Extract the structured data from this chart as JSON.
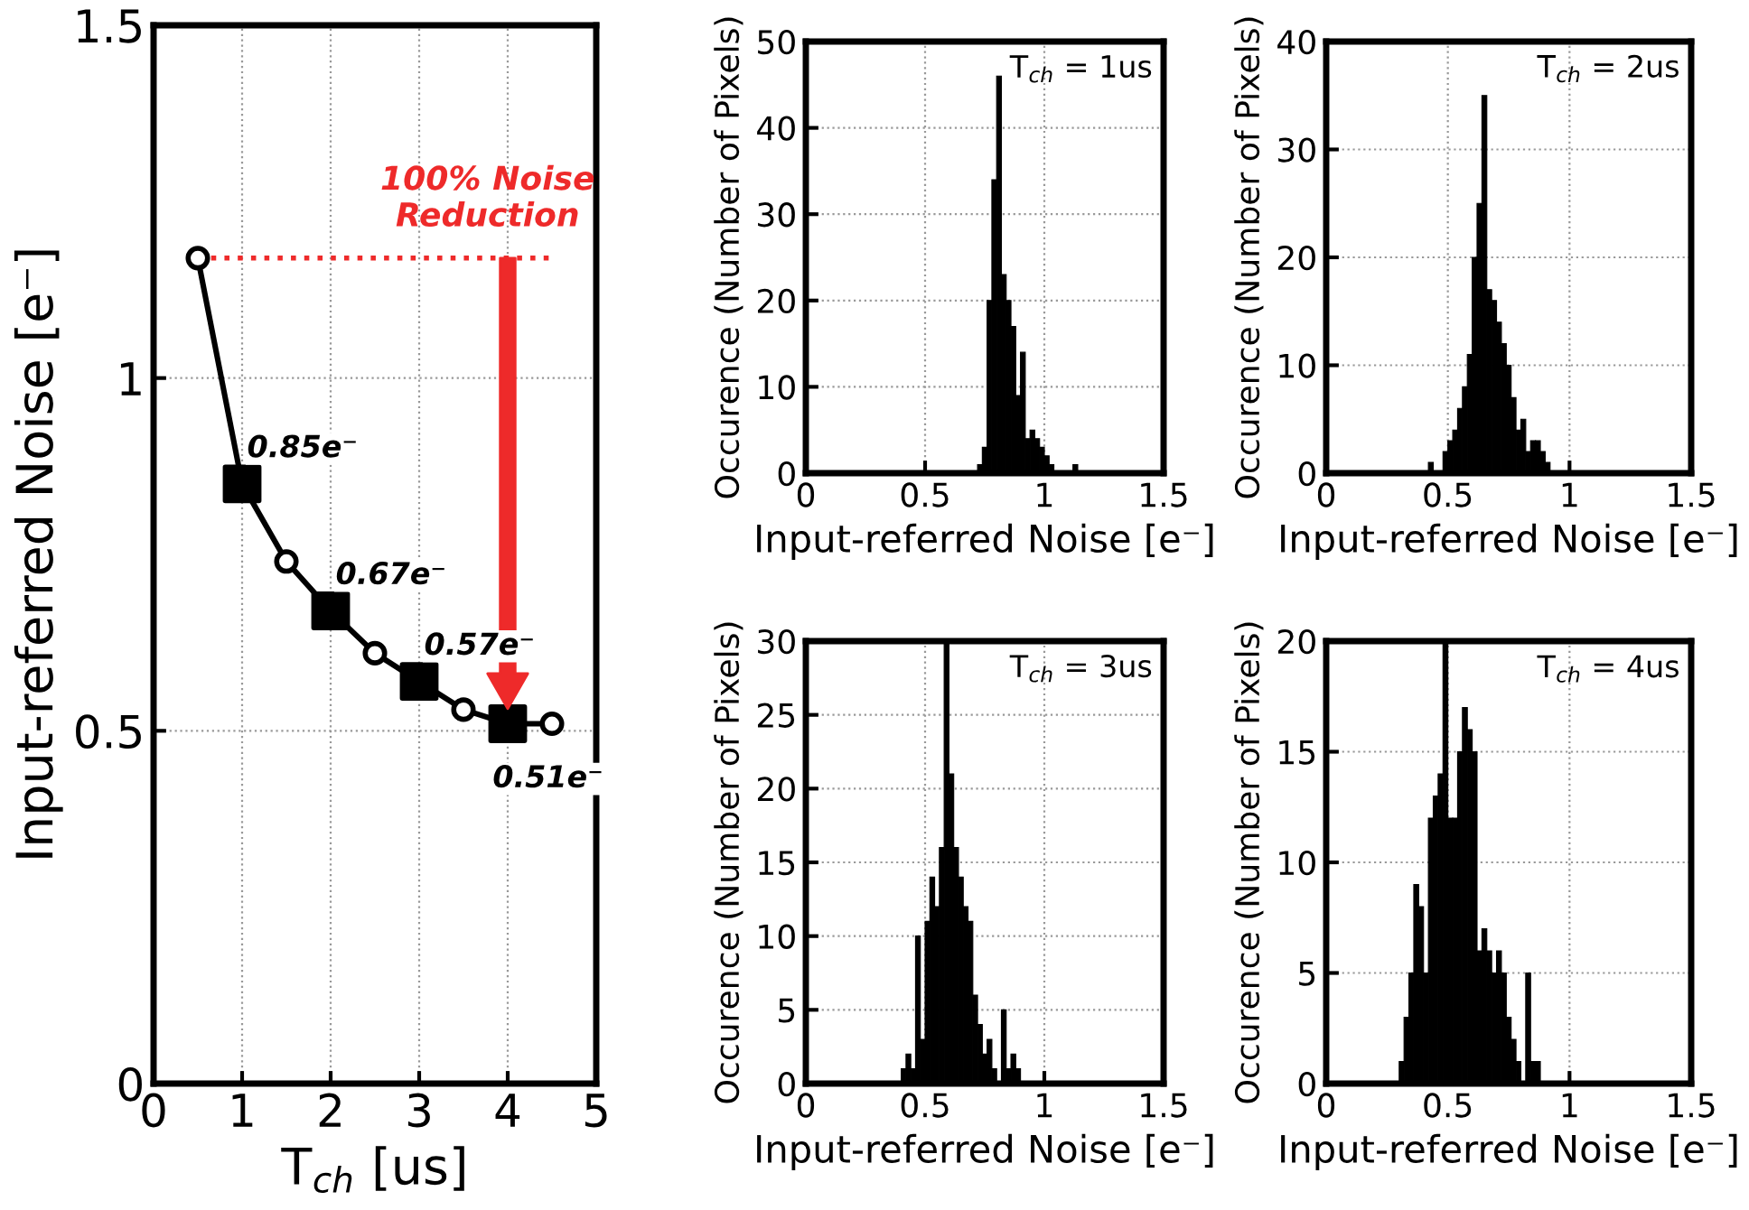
{
  "chart_data": [
    {
      "type": "line",
      "xlabel": "T$_{ch}$ [us]",
      "ylabel": "Input-referred Noise [e⁻]",
      "xlim": [
        0,
        5
      ],
      "xticks": [
        0,
        1,
        2,
        3,
        4,
        5
      ],
      "ylim": [
        0,
        1.5
      ],
      "yticks": [
        0,
        0.5,
        1,
        1.5
      ],
      "grid": true,
      "series": [
        {
          "type": "line",
          "color": "#000000",
          "marker": "none",
          "x": [
            0.5,
            1,
            1.5,
            2,
            2.5,
            3,
            3.5,
            4,
            4.5
          ],
          "values": [
            1.17,
            0.85,
            0.74,
            0.67,
            0.61,
            0.57,
            0.53,
            0.51,
            0.51
          ]
        },
        {
          "type": "scatter",
          "color": "#000000",
          "marker": "circle",
          "x": [
            0.5,
            1.5,
            2.5,
            3.5,
            4.5
          ],
          "values": [
            1.17,
            0.74,
            0.61,
            0.53,
            0.51
          ]
        },
        {
          "type": "scatter",
          "color": "#000000",
          "marker": "square",
          "x": [
            1,
            2,
            3,
            4
          ],
          "values": [
            0.85,
            0.67,
            0.57,
            0.51
          ],
          "value_labels": [
            "0.85e⁻",
            "0.67e⁻",
            "0.57e⁻",
            "0.51e⁻"
          ]
        }
      ],
      "ref_lines": [
        {
          "axis": "y",
          "value": 1.17,
          "color": "#ee2a2a",
          "line_style": "dotted"
        }
      ],
      "annotations": [
        "100% Noise\nReduction"
      ]
    },
    {
      "type": "histogram",
      "xlabel": "Input-referred Noise [e⁻]",
      "ylabel": "Occurence (Number of Pixels)",
      "xlim": [
        0,
        1.5
      ],
      "xticks": [
        0,
        0.5,
        1,
        1.5
      ],
      "ylim": [
        0,
        50
      ],
      "yticks": [
        0,
        10,
        20,
        30,
        40,
        50
      ],
      "grid": true,
      "color": "#000000",
      "bins": [
        0.72,
        0.74,
        0.76,
        0.78,
        0.8,
        0.82,
        0.84,
        0.86,
        0.88,
        0.9,
        0.92,
        0.94,
        0.96,
        0.98,
        1.0,
        1.02,
        1.04,
        1.06,
        1.08,
        1.1,
        1.12,
        1.14
      ],
      "values": [
        1,
        3,
        20,
        34,
        46,
        23,
        20,
        17,
        9,
        14,
        4,
        5,
        4,
        3,
        2,
        1,
        0,
        0,
        0,
        0,
        1
      ],
      "annotations": [
        "T$_{ch}$ = 1us"
      ]
    },
    {
      "type": "histogram",
      "xlabel": "Input-referred Noise [e⁻]",
      "ylabel": "Occurence (Number of Pixels)",
      "xlim": [
        0,
        1.5
      ],
      "xticks": [
        0,
        0.5,
        1,
        1.5
      ],
      "ylim": [
        0,
        40
      ],
      "yticks": [
        0,
        10,
        20,
        30,
        40
      ],
      "grid": true,
      "color": "#000000",
      "bins": [
        0.42,
        0.44,
        0.46,
        0.48,
        0.5,
        0.52,
        0.54,
        0.56,
        0.58,
        0.6,
        0.62,
        0.64,
        0.66,
        0.68,
        0.7,
        0.72,
        0.74,
        0.76,
        0.78,
        0.8,
        0.82,
        0.84,
        0.86,
        0.88,
        0.9,
        0.92
      ],
      "values": [
        1,
        0,
        0,
        2,
        3,
        4,
        6,
        8,
        11,
        20,
        25,
        35,
        17,
        16,
        14,
        12,
        10,
        7,
        4,
        5,
        2,
        3,
        3,
        2,
        1
      ],
      "annotations": [
        "T$_{ch}$ = 2us"
      ]
    },
    {
      "type": "histogram",
      "xlabel": "Input-referred Noise [e⁻]",
      "ylabel": "Occurence (Number of Pixels)",
      "xlim": [
        0,
        1.5
      ],
      "xticks": [
        0,
        0.5,
        1,
        1.5
      ],
      "ylim": [
        0,
        30
      ],
      "yticks": [
        0,
        5,
        10,
        15,
        20,
        25,
        30
      ],
      "grid": true,
      "color": "#000000",
      "bins": [
        0.4,
        0.42,
        0.44,
        0.46,
        0.48,
        0.5,
        0.52,
        0.54,
        0.56,
        0.58,
        0.6,
        0.62,
        0.64,
        0.66,
        0.68,
        0.7,
        0.72,
        0.74,
        0.76,
        0.78,
        0.8,
        0.82,
        0.84,
        0.86,
        0.88,
        0.9
      ],
      "values": [
        1,
        2,
        1,
        10,
        3,
        11,
        14,
        12,
        16,
        30,
        21,
        16,
        14,
        12,
        11,
        6,
        4,
        2,
        3,
        1,
        0,
        5,
        1,
        2,
        1
      ],
      "annotations": [
        "T$_{ch}$ = 3us"
      ]
    },
    {
      "type": "histogram",
      "xlabel": "Input-referred Noise [e⁻]",
      "ylabel": "Occurence (Number of Pixels)",
      "xlim": [
        0,
        1.5
      ],
      "xticks": [
        0,
        0.5,
        1,
        1.5
      ],
      "ylim": [
        0,
        20
      ],
      "yticks": [
        0,
        5,
        10,
        15,
        20
      ],
      "grid": true,
      "color": "#000000",
      "bins": [
        0.3,
        0.32,
        0.34,
        0.36,
        0.38,
        0.4,
        0.42,
        0.44,
        0.46,
        0.48,
        0.5,
        0.52,
        0.54,
        0.56,
        0.58,
        0.6,
        0.62,
        0.64,
        0.66,
        0.68,
        0.7,
        0.72,
        0.74,
        0.76,
        0.78,
        0.8,
        0.82,
        0.84,
        0.86,
        0.88
      ],
      "values": [
        1,
        3,
        5,
        9,
        8,
        5,
        12,
        13,
        14,
        20,
        12,
        12,
        15,
        17,
        16,
        15,
        6,
        7,
        6,
        5,
        6,
        5,
        3,
        2,
        1,
        0,
        5,
        1,
        1
      ],
      "annotations": [
        "T$_{ch}$ = 4us"
      ]
    }
  ]
}
